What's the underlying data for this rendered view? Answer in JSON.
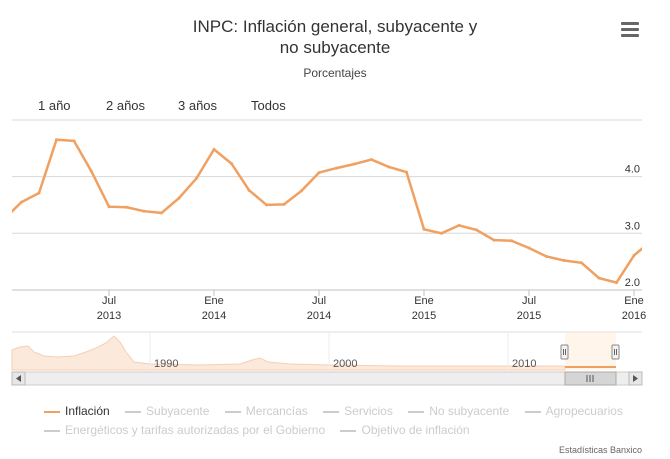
{
  "chart_data": {
    "type": "line",
    "title_lines": [
      "INPC: Inflación general, subyacente y",
      "no subyacente"
    ],
    "subtitle": "Porcentajes",
    "y_ticks": [
      "2.0",
      "3.0",
      "4.0"
    ],
    "y_range": [
      2.0,
      5.0
    ],
    "x_ticks": [
      {
        "label1": "Jul",
        "label2": "2013",
        "month": 6
      },
      {
        "label1": "Ene",
        "label2": "2014",
        "month": 12
      },
      {
        "label1": "Jul",
        "label2": "2014",
        "month": 18
      },
      {
        "label1": "Ene",
        "label2": "2015",
        "month": 24
      },
      {
        "label1": "Jul",
        "label2": "2015",
        "month": 30
      },
      {
        "label1": "Ene",
        "label2": "2016",
        "month": 36
      }
    ],
    "x_start": "2013-01",
    "series": [
      {
        "name": "Inflación",
        "color": "#f0a060",
        "values": [
          3.25,
          3.55,
          3.71,
          4.65,
          4.63,
          4.09,
          3.47,
          3.46,
          3.39,
          3.36,
          3.62,
          3.97,
          4.48,
          4.23,
          3.76,
          3.5,
          3.51,
          3.75,
          4.07,
          4.15,
          4.22,
          4.3,
          4.17,
          4.08,
          3.07,
          3.0,
          3.14,
          3.06,
          2.88,
          2.87,
          2.74,
          2.59,
          2.52,
          2.48,
          2.21,
          2.13,
          2.61,
          2.87
        ]
      }
    ],
    "legend": [
      {
        "name": "Inflación",
        "active": true
      },
      {
        "name": "Subyacente",
        "active": false
      },
      {
        "name": "Mercancías",
        "active": false
      },
      {
        "name": "Servicios",
        "active": false
      },
      {
        "name": "No subyacente",
        "active": false
      },
      {
        "name": "Agropecuarios",
        "active": false
      },
      {
        "name": "Energéticos y tarifas autorizadas por el Gobierno",
        "active": false
      },
      {
        "name": "Objetivo de inflación",
        "active": false
      }
    ],
    "navigator_labels": [
      "1990",
      "2000",
      "2010"
    ]
  },
  "range_selector": [
    "1 año",
    "2 años",
    "3 años",
    "Todos"
  ],
  "credits": "Estadísticas Banxico",
  "colors": {
    "series": "#f0a060",
    "grid": "#d8d8d8"
  }
}
